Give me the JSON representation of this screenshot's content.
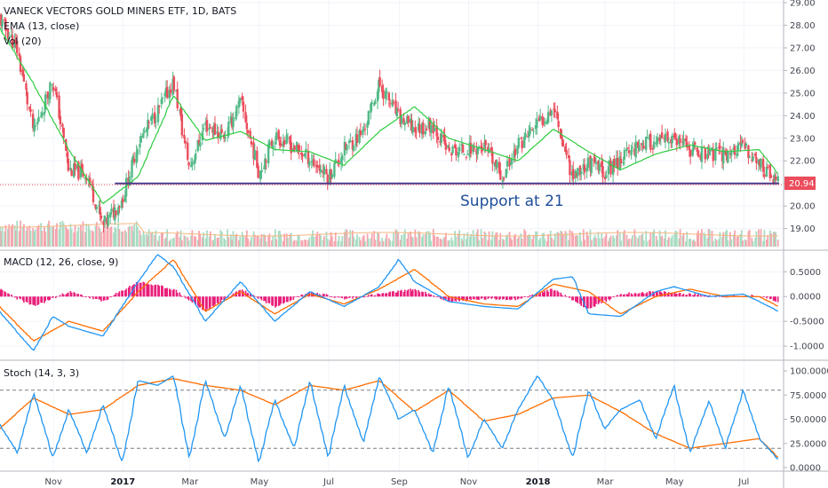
{
  "header": {
    "title": "VANECK VECTORS GOLD MINERS ETF, 1D, BATS",
    "ema_label": "EMA (13, close)",
    "vol_label": "Vol (20)"
  },
  "support_label": "Support at 21",
  "last_price": "20.94",
  "colors": {
    "up": "#53b987",
    "down": "#eb4d5c",
    "ema": "#2ecc40",
    "support": "#4b3a8c",
    "macd_line": "#2196f3",
    "signal_line": "#ff6d00",
    "hist": "#e91e7a",
    "stoch_k": "#2196f3",
    "stoch_d": "#ff6d00"
  },
  "x_axis": [
    "Nov",
    "2017",
    "Mar",
    "May",
    "Jul",
    "Sep",
    "Nov",
    "2018",
    "Mar",
    "May",
    "Jul"
  ],
  "chart_data": [
    {
      "type": "line",
      "panel": "price",
      "title": "VANECK VECTORS GOLD MINERS ETF, 1D, BATS",
      "y_ticks": [
        "29.00",
        "28.00",
        "27.00",
        "26.00",
        "25.00",
        "24.00",
        "23.00",
        "22.00",
        "21.00",
        "20.00",
        "19.00"
      ],
      "ylim": [
        18.2,
        29.0
      ],
      "series": [
        {
          "name": "Close",
          "x": [
            "2016-09-15",
            "2016-10-01",
            "2016-10-15",
            "2016-11-01",
            "2016-11-15",
            "2016-12-01",
            "2016-12-15",
            "2017-01-01",
            "2017-01-15",
            "2017-02-01",
            "2017-02-15",
            "2017-03-01",
            "2017-03-15",
            "2017-04-01",
            "2017-04-15",
            "2017-05-01",
            "2017-05-15",
            "2017-06-01",
            "2017-06-15",
            "2017-07-01",
            "2017-07-15",
            "2017-08-01",
            "2017-08-15",
            "2017-09-01",
            "2017-09-15",
            "2017-10-01",
            "2017-10-15",
            "2017-11-01",
            "2017-11-15",
            "2017-12-01",
            "2017-12-15",
            "2018-01-01",
            "2018-01-15",
            "2018-02-01",
            "2018-02-15",
            "2018-03-01",
            "2018-03-15",
            "2018-04-01",
            "2018-04-15",
            "2018-05-01",
            "2018-05-15",
            "2018-06-01",
            "2018-06-15",
            "2018-07-01",
            "2018-07-15",
            "2018-08-01"
          ],
          "values": [
            28.3,
            26.9,
            23.2,
            25.6,
            21.6,
            21.4,
            19.1,
            20.3,
            22.8,
            24.2,
            25.5,
            21.7,
            23.6,
            23.1,
            24.6,
            21.5,
            23.1,
            22.6,
            22.1,
            21.3,
            22.5,
            23.3,
            25.4,
            23.9,
            23.4,
            23.6,
            22.4,
            22.5,
            22.6,
            21.3,
            22.7,
            23.6,
            24.4,
            21.3,
            21.9,
            21.5,
            22.1,
            22.8,
            22.8,
            22.9,
            22.5,
            22.3,
            22.3,
            22.6,
            21.9,
            20.94
          ]
        },
        {
          "name": "EMA (13, close)",
          "x": [
            "2016-09-15",
            "2016-10-15",
            "2016-11-15",
            "2016-12-15",
            "2017-01-15",
            "2017-02-15",
            "2017-03-15",
            "2017-04-15",
            "2017-05-15",
            "2017-06-15",
            "2017-07-15",
            "2017-08-15",
            "2017-09-15",
            "2017-10-15",
            "2017-11-15",
            "2017-12-15",
            "2018-01-15",
            "2018-02-15",
            "2018-03-15",
            "2018-04-15",
            "2018-05-15",
            "2018-06-15",
            "2018-07-15",
            "2018-08-01"
          ],
          "values": [
            27.9,
            25.4,
            22.5,
            20.1,
            21.3,
            24.9,
            22.9,
            23.3,
            22.5,
            22.4,
            21.8,
            23.3,
            24.4,
            23.0,
            22.5,
            22.0,
            23.4,
            22.4,
            21.6,
            22.3,
            22.7,
            22.4,
            22.5,
            21.4
          ]
        }
      ],
      "annotations": [
        {
          "type": "horizontal_line",
          "label": "Support at 21",
          "y": 21.0,
          "x_start": "2016-12-25",
          "x_end": "2018-08-01"
        }
      ]
    },
    {
      "type": "line",
      "panel": "macd",
      "title": "MACD (12, 26, close, 9)",
      "y_ticks": [
        "0.5000",
        "0.0000",
        "-0.5000",
        "-1.0000"
      ],
      "ylim": [
        -1.25,
        0.9
      ],
      "series": [
        {
          "name": "MACD",
          "x": [
            "2016-09-15",
            "2016-10-15",
            "2016-11-01",
            "2016-11-15",
            "2016-12-15",
            "2017-01-15",
            "2017-02-01",
            "2017-02-15",
            "2017-03-15",
            "2017-04-15",
            "2017-05-15",
            "2017-06-15",
            "2017-07-15",
            "2017-08-15",
            "2017-09-01",
            "2017-09-15",
            "2017-10-15",
            "2017-11-15",
            "2017-12-15",
            "2018-01-15",
            "2018-02-01",
            "2018-02-15",
            "2018-03-15",
            "2018-04-15",
            "2018-05-01",
            "2018-06-01",
            "2018-07-01",
            "2018-07-15",
            "2018-08-01"
          ],
          "values": [
            -0.3,
            -1.1,
            -0.4,
            -0.6,
            -0.8,
            0.3,
            0.85,
            0.6,
            -0.5,
            0.3,
            -0.5,
            0.1,
            -0.2,
            0.2,
            0.75,
            0.3,
            -0.1,
            -0.2,
            -0.25,
            0.35,
            0.4,
            -0.35,
            -0.4,
            0.1,
            0.2,
            0.0,
            0.05,
            -0.1,
            -0.3
          ]
        },
        {
          "name": "Signal",
          "x": [
            "2016-09-15",
            "2016-10-15",
            "2016-11-15",
            "2016-12-15",
            "2017-01-15",
            "2017-02-15",
            "2017-03-15",
            "2017-04-15",
            "2017-05-15",
            "2017-06-15",
            "2017-07-15",
            "2017-08-15",
            "2017-09-15",
            "2017-10-15",
            "2017-11-15",
            "2017-12-15",
            "2018-01-15",
            "2018-02-15",
            "2018-03-15",
            "2018-04-15",
            "2018-05-15",
            "2018-06-15",
            "2018-07-15",
            "2018-08-01"
          ],
          "values": [
            -0.2,
            -0.9,
            -0.5,
            -0.7,
            0.1,
            0.75,
            -0.3,
            0.1,
            -0.35,
            0.05,
            -0.15,
            0.15,
            0.55,
            0.0,
            -0.15,
            -0.2,
            0.25,
            0.1,
            -0.35,
            0.0,
            0.15,
            0.0,
            0.0,
            -0.2
          ]
        },
        {
          "name": "Histogram",
          "x": [
            "2016-09-15",
            "2016-10-15",
            "2016-11-15",
            "2016-12-15",
            "2017-01-15",
            "2017-02-15",
            "2017-03-15",
            "2017-04-15",
            "2017-05-15",
            "2017-06-15",
            "2017-07-15",
            "2017-08-15",
            "2017-09-15",
            "2017-10-15",
            "2017-11-15",
            "2017-12-15",
            "2018-01-15",
            "2018-02-15",
            "2018-03-15",
            "2018-04-15",
            "2018-05-15",
            "2018-06-15",
            "2018-07-15",
            "2018-08-01"
          ],
          "values": [
            0.15,
            -0.2,
            0.1,
            -0.1,
            0.3,
            0.15,
            -0.3,
            0.15,
            -0.2,
            0.1,
            -0.05,
            0.05,
            0.15,
            -0.1,
            -0.05,
            -0.05,
            0.15,
            -0.25,
            0.05,
            0.1,
            0.05,
            0.0,
            0.02,
            -0.1
          ]
        }
      ]
    },
    {
      "type": "line",
      "panel": "stoch",
      "title": "Stoch (14, 3, 3)",
      "y_ticks": [
        "100.0000",
        "75.0000",
        "50.0000",
        "25.0000",
        "0.0000"
      ],
      "ylim": [
        0,
        100
      ],
      "reference_lines": [
        80,
        20
      ],
      "series": [
        {
          "name": "%K",
          "x": [
            "2016-09-15",
            "2016-10-01",
            "2016-10-15",
            "2016-11-01",
            "2016-11-15",
            "2016-12-01",
            "2016-12-15",
            "2017-01-01",
            "2017-01-15",
            "2017-02-01",
            "2017-02-15",
            "2017-03-01",
            "2017-03-15",
            "2017-04-01",
            "2017-04-15",
            "2017-05-01",
            "2017-05-15",
            "2017-06-01",
            "2017-06-15",
            "2017-07-01",
            "2017-07-15",
            "2017-08-01",
            "2017-08-15",
            "2017-09-01",
            "2017-09-15",
            "2017-10-01",
            "2017-10-15",
            "2017-11-01",
            "2017-11-15",
            "2017-12-01",
            "2017-12-15",
            "2018-01-01",
            "2018-01-15",
            "2018-02-01",
            "2018-02-15",
            "2018-03-01",
            "2018-03-15",
            "2018-04-01",
            "2018-04-15",
            "2018-05-01",
            "2018-05-15",
            "2018-06-01",
            "2018-06-15",
            "2018-07-01",
            "2018-07-15",
            "2018-08-01"
          ],
          "values": [
            45,
            15,
            78,
            10,
            60,
            15,
            65,
            5,
            90,
            85,
            95,
            10,
            90,
            30,
            85,
            5,
            70,
            20,
            90,
            10,
            85,
            25,
            95,
            50,
            60,
            15,
            85,
            10,
            50,
            20,
            60,
            95,
            70,
            10,
            80,
            40,
            60,
            70,
            30,
            85,
            15,
            70,
            20,
            80,
            30,
            8
          ]
        },
        {
          "name": "%D",
          "x": [
            "2016-09-15",
            "2016-10-15",
            "2016-11-15",
            "2016-12-15",
            "2017-01-15",
            "2017-02-15",
            "2017-03-15",
            "2017-04-15",
            "2017-05-15",
            "2017-06-15",
            "2017-07-15",
            "2017-08-15",
            "2017-09-15",
            "2017-10-15",
            "2017-11-15",
            "2017-12-15",
            "2018-01-15",
            "2018-02-15",
            "2018-03-15",
            "2018-04-15",
            "2018-05-15",
            "2018-06-15",
            "2018-07-15",
            "2018-08-01"
          ],
          "values": [
            40,
            72,
            55,
            60,
            85,
            92,
            85,
            80,
            65,
            85,
            80,
            90,
            58,
            80,
            48,
            55,
            72,
            75,
            58,
            35,
            20,
            25,
            30,
            10
          ]
        }
      ]
    }
  ]
}
